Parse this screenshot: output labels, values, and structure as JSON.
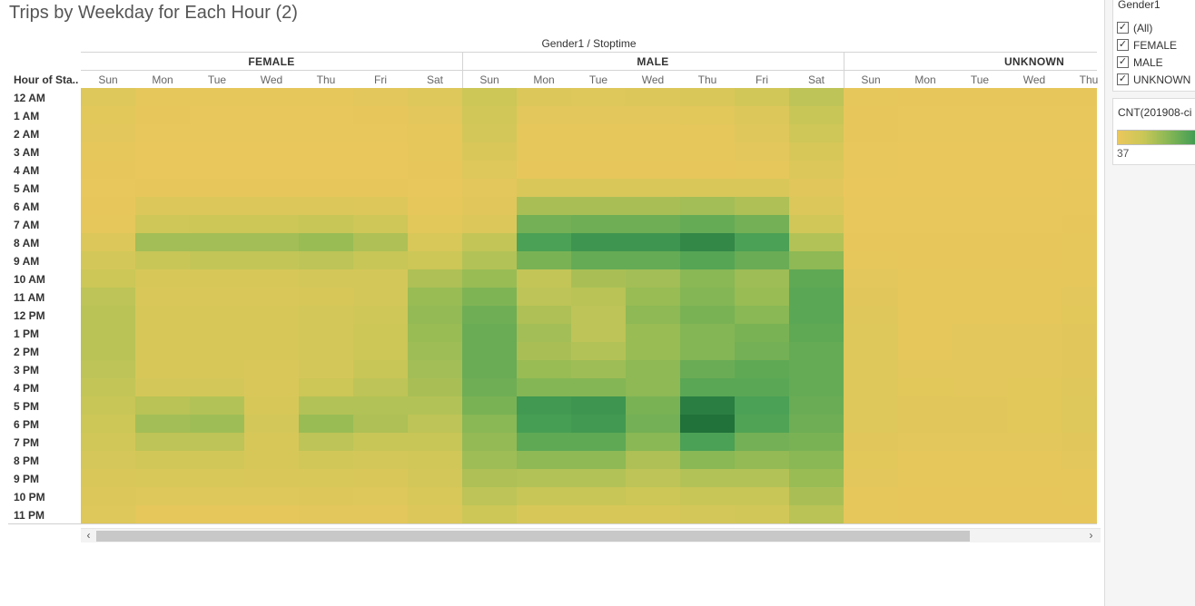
{
  "title": "Trips by Weekday for Each Hour (2)",
  "column_title": "Gender1 / Stoptime",
  "row_header": "Hour of Sta..",
  "filter": {
    "title": "Gender1",
    "items": [
      {
        "label": "(All)",
        "checked": true
      },
      {
        "label": "FEMALE",
        "checked": true
      },
      {
        "label": "MALE",
        "checked": true
      },
      {
        "label": "UNKNOWN",
        "checked": true
      }
    ]
  },
  "legend": {
    "title": "CNT(201908-ci",
    "min_label": "37"
  },
  "colors": {
    "ramp": [
      "#ebc75d",
      "#cbc757",
      "#89b855",
      "#48a055",
      "#186835"
    ]
  },
  "scroll": {
    "left_arrow": "‹",
    "right_arrow": "›"
  },
  "chart_data": {
    "type": "heatmap",
    "title": "Trips by Weekday for Each Hour (2)",
    "column_title": "Gender1 / Stoptime",
    "row_label": "Hour of Sta..",
    "groups": [
      "FEMALE",
      "MALE",
      "UNKNOWN"
    ],
    "visible_days": [
      [
        "Sun",
        "Mon",
        "Tue",
        "Wed",
        "Thu",
        "Fri",
        "Sat"
      ],
      [
        "Sun",
        "Mon",
        "Tue",
        "Wed",
        "Thu",
        "Fri",
        "Sat"
      ],
      [
        "Sun",
        "Mon",
        "Tue",
        "Wed",
        "Thu"
      ]
    ],
    "hours": [
      "12 AM",
      "1 AM",
      "2 AM",
      "3 AM",
      "4 AM",
      "5 AM",
      "6 AM",
      "7 AM",
      "8 AM",
      "9 AM",
      "10 AM",
      "11 AM",
      "12 PM",
      "1 PM",
      "2 PM",
      "3 PM",
      "4 PM",
      "5 PM",
      "6 PM",
      "7 PM",
      "8 PM",
      "9 PM",
      "10 PM",
      "11 PM"
    ],
    "value_scale": [
      0,
      100
    ],
    "color_min_label": "37",
    "values": [
      [
        [
          10,
          5,
          4,
          4,
          5,
          6,
          10
        ],
        [
          7,
          3,
          2,
          2,
          2,
          3,
          6
        ],
        [
          6,
          2,
          2,
          2,
          2,
          2,
          5
        ],
        [
          4,
          1,
          1,
          1,
          1,
          1,
          4
        ],
        [
          3,
          1,
          1,
          1,
          1,
          1,
          3
        ],
        [
          2,
          3,
          3,
          3,
          3,
          3,
          2
        ],
        [
          3,
          12,
          12,
          12,
          12,
          11,
          4
        ],
        [
          5,
          22,
          24,
          24,
          26,
          22,
          7
        ],
        [
          12,
          40,
          40,
          40,
          44,
          36,
          15
        ],
        [
          18,
          26,
          28,
          28,
          30,
          26,
          24
        ],
        [
          24,
          16,
          16,
          16,
          18,
          18,
          36
        ],
        [
          30,
          14,
          14,
          14,
          16,
          18,
          44
        ],
        [
          32,
          16,
          16,
          16,
          18,
          22,
          46
        ],
        [
          32,
          16,
          16,
          16,
          18,
          24,
          44
        ],
        [
          32,
          16,
          16,
          16,
          18,
          24,
          42
        ],
        [
          30,
          16,
          16,
          14,
          18,
          26,
          40
        ],
        [
          28,
          18,
          18,
          14,
          24,
          30,
          38
        ],
        [
          26,
          32,
          34,
          16,
          34,
          34,
          34
        ],
        [
          24,
          40,
          42,
          18,
          44,
          36,
          30
        ],
        [
          20,
          30,
          30,
          16,
          30,
          26,
          26
        ],
        [
          17,
          20,
          20,
          16,
          20,
          18,
          21
        ],
        [
          14,
          15,
          15,
          14,
          15,
          14,
          18
        ],
        [
          12,
          10,
          10,
          10,
          11,
          10,
          15
        ],
        [
          10,
          5,
          5,
          5,
          6,
          6,
          12
        ]
      ],
      [
        [
          24,
          12,
          10,
          12,
          14,
          20,
          30
        ],
        [
          20,
          6,
          6,
          6,
          7,
          12,
          26
        ],
        [
          18,
          5,
          5,
          5,
          5,
          9,
          22
        ],
        [
          14,
          4,
          4,
          4,
          4,
          6,
          16
        ],
        [
          10,
          3,
          3,
          3,
          3,
          4,
          12
        ],
        [
          6,
          14,
          14,
          14,
          14,
          14,
          8
        ],
        [
          8,
          38,
          38,
          38,
          40,
          36,
          12
        ],
        [
          12,
          58,
          60,
          60,
          64,
          58,
          20
        ],
        [
          28,
          74,
          80,
          80,
          86,
          74,
          34
        ],
        [
          34,
          56,
          64,
          64,
          70,
          62,
          48
        ],
        [
          44,
          28,
          38,
          40,
          50,
          42,
          66
        ],
        [
          54,
          30,
          32,
          44,
          52,
          44,
          68
        ],
        [
          60,
          36,
          30,
          48,
          56,
          50,
          68
        ],
        [
          62,
          40,
          30,
          44,
          52,
          56,
          66
        ],
        [
          62,
          38,
          34,
          44,
          52,
          58,
          64
        ],
        [
          62,
          44,
          42,
          48,
          62,
          66,
          64
        ],
        [
          60,
          52,
          52,
          48,
          68,
          68,
          64
        ],
        [
          56,
          78,
          80,
          56,
          90,
          74,
          62
        ],
        [
          50,
          76,
          78,
          58,
          96,
          72,
          60
        ],
        [
          46,
          66,
          66,
          50,
          74,
          58,
          56
        ],
        [
          42,
          48,
          48,
          36,
          50,
          46,
          50
        ],
        [
          36,
          34,
          34,
          30,
          34,
          34,
          44
        ],
        [
          30,
          26,
          26,
          24,
          26,
          26,
          38
        ],
        [
          24,
          16,
          16,
          16,
          18,
          20,
          32
        ]
      ],
      [
        [
          4,
          3,
          3,
          3,
          3
        ],
        [
          3,
          2,
          2,
          2,
          2
        ],
        [
          3,
          2,
          2,
          2,
          2
        ],
        [
          2,
          1,
          1,
          1,
          1
        ],
        [
          2,
          1,
          1,
          1,
          1
        ],
        [
          1,
          1,
          1,
          1,
          2
        ],
        [
          2,
          2,
          2,
          2,
          2
        ],
        [
          2,
          2,
          2,
          2,
          3
        ],
        [
          3,
          3,
          3,
          3,
          4
        ],
        [
          4,
          3,
          3,
          3,
          4
        ],
        [
          6,
          4,
          4,
          4,
          5
        ],
        [
          8,
          4,
          5,
          5,
          6
        ],
        [
          9,
          5,
          5,
          5,
          7
        ],
        [
          10,
          5,
          6,
          6,
          8
        ],
        [
          10,
          5,
          6,
          6,
          8
        ],
        [
          10,
          6,
          6,
          6,
          8
        ],
        [
          10,
          7,
          6,
          7,
          9
        ],
        [
          10,
          8,
          8,
          7,
          10
        ],
        [
          10,
          8,
          8,
          7,
          10
        ],
        [
          8,
          6,
          6,
          6,
          8
        ],
        [
          7,
          5,
          5,
          5,
          6
        ],
        [
          6,
          4,
          4,
          4,
          5
        ],
        [
          5,
          3,
          3,
          3,
          4
        ],
        [
          4,
          3,
          3,
          3,
          3
        ]
      ]
    ]
  }
}
